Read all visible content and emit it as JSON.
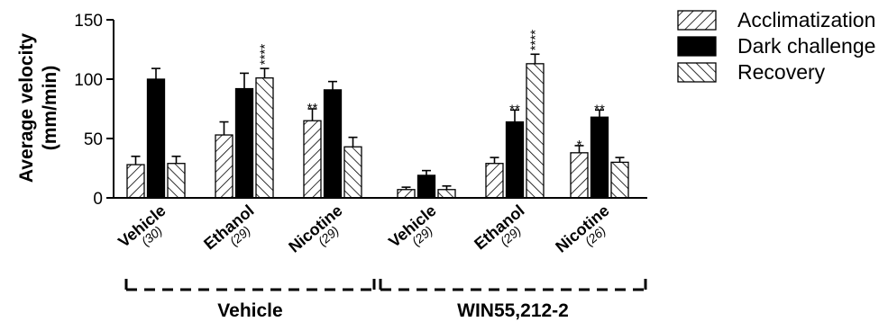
{
  "chart_data": {
    "type": "bar",
    "ylabel_line1": "Average velocity",
    "ylabel_line2": "(mm/min)",
    "ylim": [
      0,
      150
    ],
    "yticks": [
      "0",
      "50",
      "100",
      "150"
    ],
    "categories": [
      "Vehicle",
      "Ethanol",
      "Nicotine",
      "Vehicle",
      "Ethanol",
      "Nicotine"
    ],
    "n_labels": [
      "(30)",
      "(29)",
      "(29)",
      "(29)",
      "(29)",
      "(26)"
    ],
    "groups": [
      {
        "label": "Vehicle",
        "categories": [
          0,
          1,
          2
        ]
      },
      {
        "label": "WIN55,212-2",
        "categories": [
          3,
          4,
          5
        ]
      }
    ],
    "series": [
      {
        "name": "Acclimatization",
        "pattern": "diagonal-up",
        "values": [
          28,
          53,
          65,
          7,
          29,
          38
        ],
        "errors": [
          7,
          11,
          10,
          2,
          5,
          6
        ],
        "sig": [
          "",
          "",
          "**",
          "",
          "",
          "*"
        ]
      },
      {
        "name": "Dark challenge",
        "pattern": "solid",
        "color": "#000000",
        "values": [
          100,
          92,
          91,
          19,
          64,
          68
        ],
        "errors": [
          9,
          13,
          7,
          4,
          10,
          6
        ],
        "sig": [
          "",
          "",
          "",
          "",
          "**",
          "**"
        ]
      },
      {
        "name": "Recovery",
        "pattern": "diagonal-down",
        "values": [
          29,
          101,
          43,
          7,
          113,
          30
        ],
        "errors": [
          6,
          8,
          8,
          3,
          8,
          4
        ],
        "sig": [
          "",
          "****",
          "",
          "",
          "****",
          ""
        ]
      }
    ],
    "legend_position": "top-right",
    "grid": false
  }
}
